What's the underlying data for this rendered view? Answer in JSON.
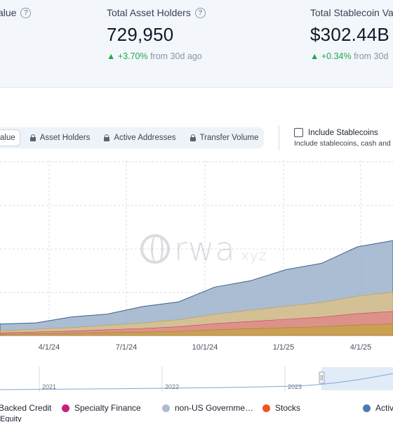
{
  "stats": [
    {
      "label": "alue"
    },
    {
      "label": "Total Asset Holders",
      "value": "729,950",
      "change": "▲ +3.70%",
      "period": "from 30d ago"
    },
    {
      "label": "Total Stablecoin Va",
      "value": "$302.44B",
      "change": "▲ +0.34%",
      "period": "from 30d"
    }
  ],
  "tabs": {
    "active": "alue",
    "holders": "Asset Holders",
    "addresses": "Active Addresses",
    "transfer": "Transfer Volume"
  },
  "stablecoins": {
    "label": "Include Stablecoins",
    "description": "Include stablecoins, cash and"
  },
  "watermark": {
    "brand": "rwa",
    "suffix": ".xyz"
  },
  "chart_data": {
    "type": "area",
    "x_ticks": [
      "4/1/24",
      "7/1/24",
      "10/1/24",
      "1/1/25",
      "4/1/25"
    ],
    "y_ticks": [],
    "grid": true,
    "stacked": true,
    "series_colors": {
      "base": "#c7a24a",
      "mid": "#d9c189",
      "pink": "#e85a7a",
      "top": "#8fa7c4"
    },
    "top_values": [
      0.06,
      0.08,
      0.1,
      0.13,
      0.16,
      0.2,
      0.27,
      0.32,
      0.37,
      0.42,
      0.5,
      0.55
    ]
  },
  "navigator": {
    "years": [
      "2021",
      "2022",
      "2023"
    ]
  },
  "legend": {
    "items": [
      {
        "label": "Backed Credit",
        "color": ""
      },
      {
        "label": "Specialty Finance",
        "color": "#c81f7c"
      },
      {
        "label": "non-US Governme…",
        "color": "#aebbd0"
      },
      {
        "label": "Stocks",
        "color": "#f05423"
      },
      {
        "label": "Activ",
        "color": "#4a7bb0"
      }
    ],
    "overflow": "Equity"
  },
  "colors": {
    "accent_up": "#1ea84b",
    "band": "#f3f7fc",
    "tab_bg": "#eef3fa"
  }
}
